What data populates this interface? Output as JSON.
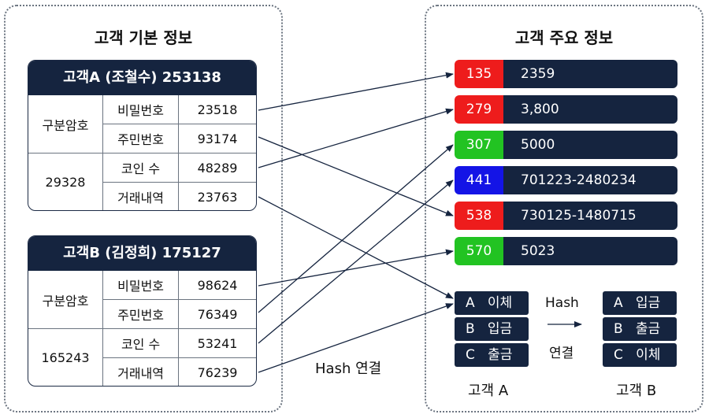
{
  "left_panel": {
    "title": "고객 기본 정보",
    "cards": [
      {
        "header": "고객A (조철수) 253138",
        "groups": [
          {
            "label": "구분암호",
            "rows": [
              {
                "field": "비밀번호",
                "value": "23518"
              },
              {
                "field": "주민번호",
                "value": "93174"
              }
            ]
          },
          {
            "label": "29328",
            "rows": [
              {
                "field": "코인 수",
                "value": "48289"
              },
              {
                "field": "거래내역",
                "value": "23763"
              }
            ]
          }
        ]
      },
      {
        "header": "고객B (김정희) 175127",
        "groups": [
          {
            "label": "구분암호",
            "rows": [
              {
                "field": "비밀번호",
                "value": "98624"
              },
              {
                "field": "주민번호",
                "value": "76349"
              }
            ]
          },
          {
            "label": "165243",
            "rows": [
              {
                "field": "코인 수",
                "value": "53241"
              },
              {
                "field": "거래내역",
                "value": "76239"
              }
            ]
          }
        ]
      }
    ],
    "link_label": "Hash 연결"
  },
  "right_panel": {
    "title": "고객 주요 정보",
    "entries": [
      {
        "hash": "135",
        "value": "2359",
        "color": "#ee1c1c"
      },
      {
        "hash": "279",
        "value": "3,800",
        "color": "#ee1c1c"
      },
      {
        "hash": "307",
        "value": "5000",
        "color": "#22c322"
      },
      {
        "hash": "441",
        "value": "701223-2480234",
        "color": "#1414e6"
      },
      {
        "hash": "538",
        "value": "730125-1480715",
        "color": "#ee1c1c"
      },
      {
        "hash": "570",
        "value": "5023",
        "color": "#22c322"
      }
    ],
    "customer_a": {
      "label": "고객 A",
      "items": [
        {
          "key": "A",
          "text": "이체"
        },
        {
          "key": "B",
          "text": "입금"
        },
        {
          "key": "C",
          "text": "출금"
        }
      ]
    },
    "customer_b": {
      "label": "고객 B",
      "items": [
        {
          "key": "A",
          "text": "입금"
        },
        {
          "key": "B",
          "text": "출금"
        },
        {
          "key": "C",
          "text": "이체"
        }
      ]
    },
    "mapping_top": "Hash",
    "mapping_bottom": "연결"
  },
  "colors": {
    "navy": "#15243f",
    "red": "#ee1c1c",
    "green": "#22c322",
    "blue": "#1414e6"
  }
}
